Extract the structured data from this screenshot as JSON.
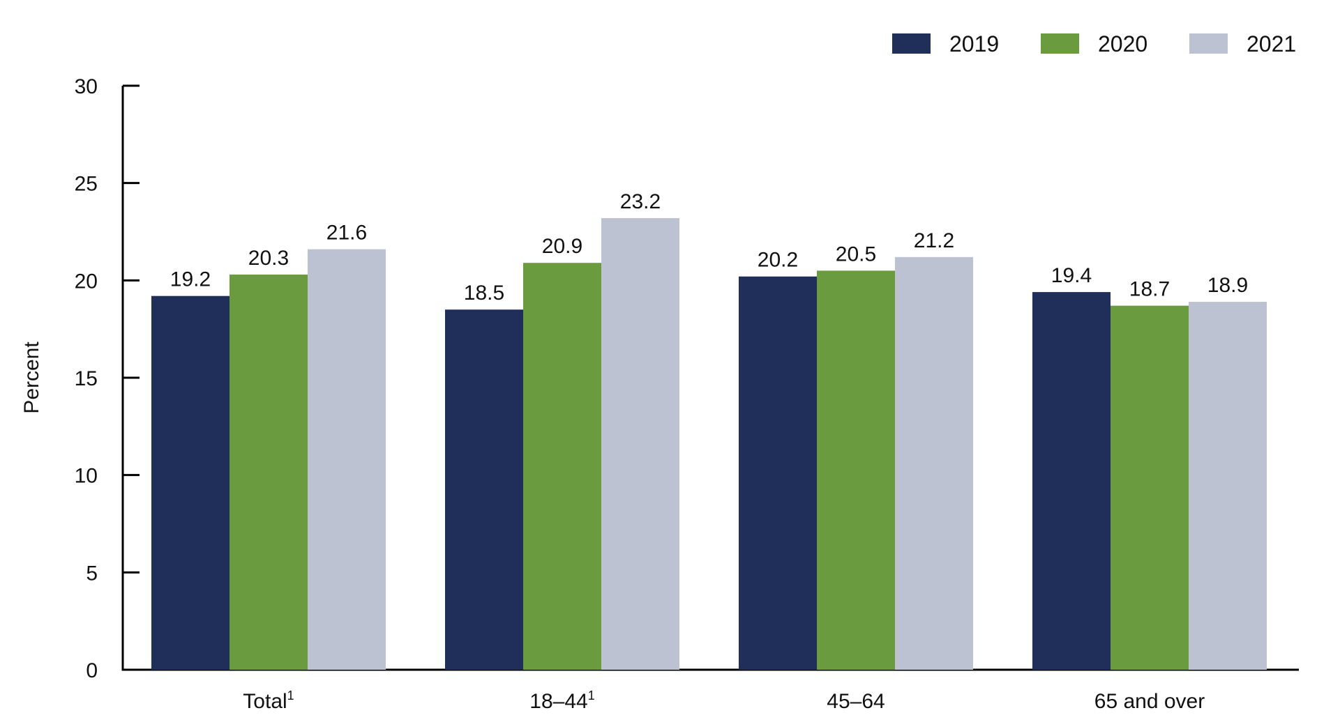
{
  "chart_data": {
    "type": "bar",
    "categories": [
      "Total",
      "18–44",
      "45–64",
      "65 and over"
    ],
    "category_footnotes": [
      "1",
      "1",
      "",
      ""
    ],
    "series": [
      {
        "name": "2019",
        "color": "#1f2f5a",
        "values": [
          19.2,
          18.5,
          20.2,
          19.4
        ]
      },
      {
        "name": "2020",
        "color": "#6b9b3f",
        "values": [
          20.3,
          20.9,
          20.5,
          18.7
        ]
      },
      {
        "name": "2021",
        "color": "#bcc2d1",
        "values": [
          21.6,
          23.2,
          21.2,
          18.9
        ]
      }
    ],
    "data_labels": [
      [
        "19.2",
        "18.5",
        "20.2",
        "19.4"
      ],
      [
        "20.3",
        "20.9",
        "20.5",
        "18.7"
      ],
      [
        "21.6",
        "23.2",
        "21.2",
        "18.9"
      ]
    ],
    "ylabel": "Percent",
    "xlabel": "",
    "ylim": [
      0,
      30
    ],
    "yticks": [
      0,
      5,
      10,
      15,
      20,
      25,
      30
    ],
    "ytick_labels": [
      "0",
      "5",
      "10",
      "15",
      "20",
      "25",
      "30"
    ],
    "grid": false,
    "legend_position": "top-right"
  }
}
